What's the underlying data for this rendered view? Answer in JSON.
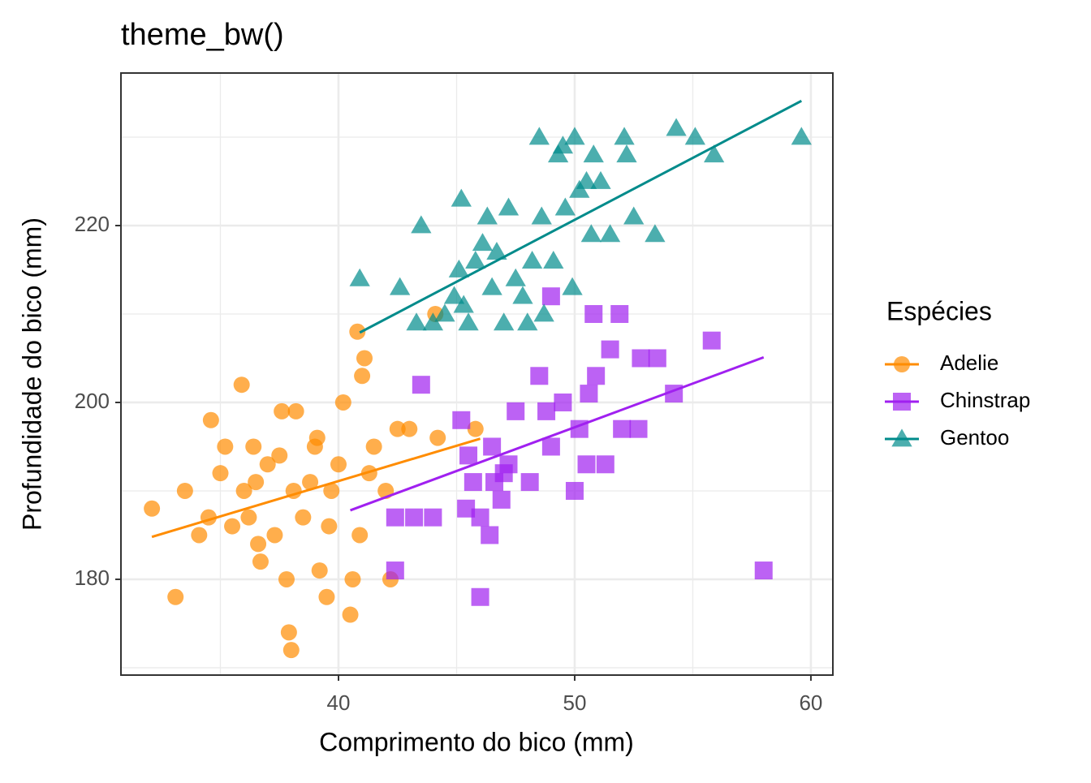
{
  "chart_data": {
    "type": "scatter",
    "title": "theme_bw()",
    "x_label": "Comprimento do bico (mm)",
    "y_label": "Profundidade do bico (mm)",
    "xlim": [
      30.79,
      60.93
    ],
    "ylim": [
      169.17,
      237.25
    ],
    "xticks": [
      40,
      50,
      60
    ],
    "yticks": [
      180,
      200,
      220
    ],
    "x_minor_breaks": [
      35,
      45,
      55
    ],
    "y_minor_breaks": [
      170,
      190,
      210,
      230
    ],
    "grid": true,
    "legend_title": "Espécies",
    "legend_position": "right",
    "series": [
      {
        "name": "Adelie",
        "color": "#ff8c00",
        "shape": "circle",
        "x": [
          32.1,
          33.1,
          33.5,
          34.1,
          34.6,
          34.5,
          35,
          35.2,
          35.5,
          35.9,
          36,
          36.2,
          36.4,
          36.6,
          36.7,
          37,
          37.3,
          37.6,
          37.8,
          37.9,
          38,
          38.1,
          38.2,
          38.5,
          38.8,
          39,
          39.2,
          39.5,
          39.6,
          39.7,
          40,
          40.2,
          40.5,
          40.6,
          40.8,
          41,
          41.1,
          41.3,
          41.5,
          42,
          42.2,
          42.5,
          43,
          44.1,
          44.2,
          45.8,
          37.5,
          36.5,
          39.1,
          40.9
        ],
        "y": [
          188,
          178,
          190,
          185,
          198,
          187,
          192,
          195,
          186,
          202,
          190,
          187,
          195,
          184,
          182,
          193,
          185,
          199,
          180,
          174,
          172,
          190,
          199,
          187,
          191,
          195,
          181,
          178,
          186,
          190,
          193,
          200,
          176,
          180,
          208,
          203,
          205,
          192,
          195,
          190,
          180,
          197,
          197,
          210,
          196,
          197,
          194,
          191,
          196,
          185
        ],
        "trend": {
          "x": [
            32.1,
            46.0
          ],
          "y": [
            184.8,
            195.9
          ]
        }
      },
      {
        "name": "Chinstrap",
        "color": "#a020f0",
        "shape": "square",
        "x": [
          42.4,
          42.4,
          43.2,
          43.5,
          45.2,
          45.4,
          45.5,
          45.7,
          46,
          46,
          46.4,
          46.5,
          46.6,
          47,
          47.5,
          48.1,
          48.5,
          49,
          49,
          49.5,
          50,
          50.2,
          50.5,
          50.8,
          50.9,
          51.3,
          51.5,
          51.9,
          52,
          52.7,
          52.8,
          53.5,
          54.2,
          55.8,
          58,
          47.2,
          48.8,
          50.6,
          46.9,
          44
        ],
        "y": [
          181,
          187,
          187,
          202,
          198,
          188,
          194,
          191,
          178,
          187,
          185,
          195,
          191,
          192,
          199,
          191,
          203,
          195,
          212,
          200,
          190,
          197,
          193,
          210,
          203,
          193,
          206,
          210,
          197,
          197,
          205,
          205,
          201,
          207,
          181,
          193,
          199,
          201,
          189,
          187
        ],
        "trend": {
          "x": [
            40.5,
            58.0
          ],
          "y": [
            187.8,
            205.1
          ]
        }
      },
      {
        "name": "Gentoo",
        "color": "#008b8b",
        "shape": "triangle",
        "x": [
          40.9,
          42.6,
          43.3,
          43.5,
          44,
          44.5,
          45.1,
          45.2,
          45.5,
          45.8,
          46.1,
          46.3,
          46.5,
          46.7,
          47.2,
          47.5,
          47.8,
          48.2,
          48.5,
          48.6,
          48.7,
          49.1,
          49.3,
          49.5,
          49.6,
          49.9,
          50,
          50.2,
          50.5,
          50.7,
          50.8,
          51.1,
          51.5,
          52.1,
          52.2,
          52.5,
          53.4,
          54.3,
          55.1,
          55.9,
          59.6,
          45.3,
          47,
          48,
          44.9
        ],
        "y": [
          214,
          213,
          209,
          220,
          209,
          210,
          215,
          223,
          209,
          216,
          218,
          221,
          213,
          217,
          222,
          214,
          212,
          216,
          230,
          221,
          210,
          216,
          228,
          229,
          222,
          213,
          230,
          224,
          225,
          219,
          228,
          225,
          219,
          230,
          228,
          221,
          219,
          231,
          230,
          228,
          230,
          211,
          209,
          209,
          212
        ],
        "trend": {
          "x": [
            40.9,
            59.6
          ],
          "y": [
            207.9,
            234.1
          ]
        }
      }
    ]
  }
}
